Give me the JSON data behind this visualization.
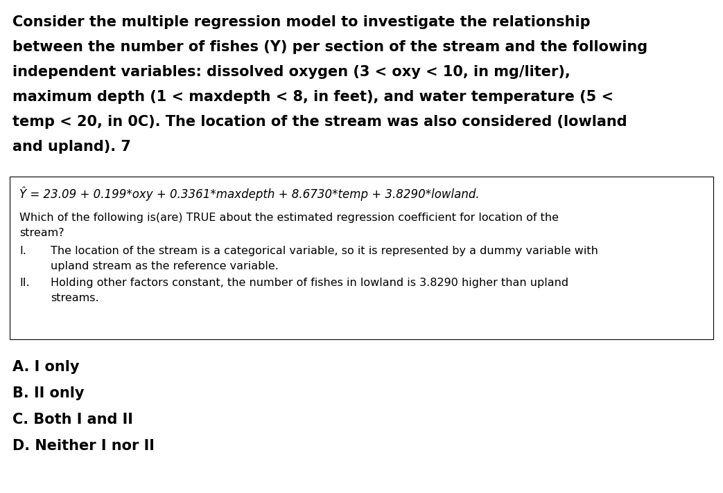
{
  "background_color": "#ffffff",
  "bold_lines": [
    "Consider the multiple regression model to investigate the relationship",
    "between the number of fishes (Y) per section of the stream and the following",
    "independent variables: dissolved oxygen (3 < oxy < 10, in mg/liter),",
    "maximum depth (1 < maxdepth < 8, in feet), and water temperature (5 <",
    "temp < 20, in 0C). The location of the stream was also considered (lowland",
    "and upland). 7"
  ],
  "equation": "Ŷ = 23.09 + 0.199*oxy + 0.3361*maxdepth + 8.6730*temp + 3.8290*lowland.",
  "question_line1": "Which of the following is(are) TRUE about the estimated regression coefficient for location of the",
  "question_line2": "stream?",
  "roman_I_label": "I.",
  "roman_I_line1": "The location of the stream is a categorical variable, so it is represented by a dummy variable with",
  "roman_I_line2": "upland stream as the reference variable.",
  "roman_II_label": "II.",
  "roman_II_line1": "Holding other factors constant, the number of fishes in lowland is 3.8290 higher than upland",
  "roman_II_line2": "streams.",
  "option_A": "A. I only",
  "option_B": "B. II only",
  "option_C": "C. Both I and II",
  "option_D": "D. Neither I nor II",
  "fig_width": 10.43,
  "fig_height": 7.12,
  "dpi": 100
}
